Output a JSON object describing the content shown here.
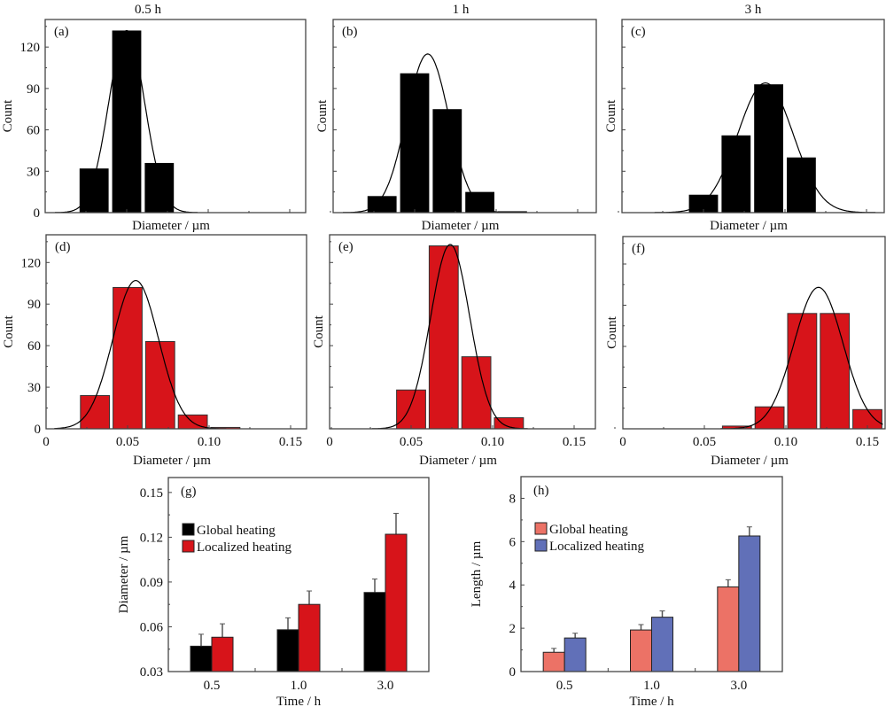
{
  "column_titles": [
    "0.5 h",
    "1 h",
    "3 h"
  ],
  "colors": {
    "global_hist": "#000000",
    "local_hist": "#d7141a",
    "g_global": "#000000",
    "g_local": "#d7141a",
    "h_global": "#ec7266",
    "h_local": "#6170b8"
  },
  "chart_data": [
    {
      "id": "a",
      "type": "bar",
      "panel_label": "(a)",
      "title": "0.5 h",
      "xlabel": "Diameter / µm",
      "ylabel": "Count",
      "xlim": [
        0,
        0.16
      ],
      "ylim": [
        0,
        140
      ],
      "show_x_tick_labels": false,
      "show_y_tick_labels": true,
      "x_ticks": [
        0,
        0.05,
        0.1,
        0.15
      ],
      "y_ticks": [
        0,
        30,
        60,
        90,
        120
      ],
      "x_tick_labels": [
        "0",
        "0.05",
        "0.10",
        "0.15"
      ],
      "y_tick_labels": [
        "0",
        "30",
        "60",
        "90",
        "120"
      ],
      "bin_width": 0.02,
      "categories": [
        0.03,
        0.05,
        0.07
      ],
      "values": [
        32,
        132,
        36
      ],
      "fit": {
        "type": "gaussian",
        "mu": 0.05,
        "sigma": 0.011,
        "peak": 132
      },
      "series_color_key": "global_hist"
    },
    {
      "id": "b",
      "type": "bar",
      "panel_label": "(b)",
      "title": "1 h",
      "xlabel": "Diameter / µm",
      "ylabel": "Count",
      "xlim": [
        0,
        0.16
      ],
      "ylim": [
        0,
        140
      ],
      "show_x_tick_labels": false,
      "show_y_tick_labels": false,
      "x_ticks": [
        0,
        0.05,
        0.1,
        0.15
      ],
      "y_ticks": [
        0,
        30,
        60,
        90,
        120
      ],
      "x_tick_labels": [
        "0",
        "0.05",
        "0.10",
        "0.15"
      ],
      "y_tick_labels": [
        "0",
        "30",
        "60",
        "90",
        "120"
      ],
      "bin_width": 0.02,
      "categories": [
        0.03,
        0.05,
        0.07,
        0.09,
        0.11
      ],
      "values": [
        12,
        101,
        75,
        15,
        1
      ],
      "fit": {
        "type": "gaussian",
        "mu": 0.058,
        "sigma": 0.013,
        "peak": 115
      },
      "series_color_key": "global_hist"
    },
    {
      "id": "c",
      "type": "bar",
      "panel_label": "(c)",
      "title": "3 h",
      "xlabel": "Diameter / µm",
      "ylabel": "Count",
      "xlim": [
        0,
        0.16
      ],
      "ylim": [
        0,
        140
      ],
      "show_x_tick_labels": false,
      "show_y_tick_labels": false,
      "x_ticks": [
        0,
        0.05,
        0.1,
        0.15
      ],
      "y_ticks": [
        0,
        30,
        60,
        90,
        120
      ],
      "x_tick_labels": [
        "0",
        "0.05",
        "0.10",
        "0.15"
      ],
      "y_tick_labels": [
        "0",
        "30",
        "60",
        "90",
        "120"
      ],
      "bin_width": 0.02,
      "categories": [
        0.05,
        0.07,
        0.09,
        0.11
      ],
      "values": [
        13,
        56,
        93,
        40
      ],
      "fit": {
        "type": "gaussian",
        "mu": 0.088,
        "sigma": 0.017,
        "peak": 94
      },
      "series_color_key": "global_hist"
    },
    {
      "id": "d",
      "type": "bar",
      "panel_label": "(d)",
      "title": "",
      "xlabel": "Diameter / µm",
      "ylabel": "Count",
      "xlim": [
        0,
        0.16
      ],
      "ylim": [
        0,
        140
      ],
      "show_x_tick_labels": true,
      "show_y_tick_labels": true,
      "x_ticks": [
        0,
        0.05,
        0.1,
        0.15
      ],
      "y_ticks": [
        0,
        30,
        60,
        90,
        120
      ],
      "x_tick_labels": [
        "0",
        "0.05",
        "0.10",
        "0.15"
      ],
      "y_tick_labels": [
        "0",
        "30",
        "60",
        "90",
        "120"
      ],
      "bin_width": 0.02,
      "categories": [
        0.03,
        0.05,
        0.07,
        0.09,
        0.11
      ],
      "values": [
        24,
        102,
        63,
        10,
        1
      ],
      "fit": {
        "type": "gaussian",
        "mu": 0.055,
        "sigma": 0.014,
        "peak": 107
      },
      "series_color_key": "local_hist"
    },
    {
      "id": "e",
      "type": "bar",
      "panel_label": "(e)",
      "title": "",
      "xlabel": "Diameter / µm",
      "ylabel": "Count",
      "xlim": [
        0,
        0.16
      ],
      "ylim": [
        0,
        140
      ],
      "show_x_tick_labels": true,
      "show_y_tick_labels": false,
      "x_ticks": [
        0,
        0.05,
        0.1,
        0.15
      ],
      "y_ticks": [
        0,
        30,
        60,
        90,
        120
      ],
      "x_tick_labels": [
        "0",
        "0.05",
        "0.10",
        "0.15"
      ],
      "y_tick_labels": [
        "0",
        "30",
        "60",
        "90",
        "120"
      ],
      "bin_width": 0.02,
      "categories": [
        0.05,
        0.07,
        0.09,
        0.11
      ],
      "values": [
        28,
        132,
        52,
        8
      ],
      "fit": {
        "type": "gaussian",
        "mu": 0.074,
        "sigma": 0.012,
        "peak": 133
      },
      "series_color_key": "local_hist"
    },
    {
      "id": "f",
      "type": "bar",
      "panel_label": "(f)",
      "title": "",
      "xlabel": "Diameter / µm",
      "ylabel": "Count",
      "xlim": [
        0,
        0.16
      ],
      "ylim": [
        0,
        140
      ],
      "show_x_tick_labels": true,
      "show_y_tick_labels": false,
      "x_ticks": [
        0,
        0.05,
        0.1,
        0.15
      ],
      "y_ticks": [
        0,
        30,
        60,
        90,
        120
      ],
      "x_tick_labels": [
        "0",
        "0.05",
        "0.10",
        "0.15"
      ],
      "y_tick_labels": [
        "0",
        "30",
        "60",
        "90",
        "120"
      ],
      "bin_width": 0.02,
      "categories": [
        0.07,
        0.09,
        0.11,
        0.13,
        0.15
      ],
      "values": [
        2,
        16,
        84,
        84,
        14
      ],
      "fit": {
        "type": "gaussian",
        "mu": 0.12,
        "sigma": 0.015,
        "peak": 103
      },
      "series_color_key": "local_hist"
    },
    {
      "id": "g",
      "type": "bar",
      "panel_label": "(g)",
      "xlabel": "Time / h",
      "ylabel": "Diameter / µm",
      "categories": [
        "0.5",
        "1.0",
        "3.0"
      ],
      "ylim": [
        0.03,
        0.16
      ],
      "y_ticks": [
        0.03,
        0.06,
        0.09,
        0.12,
        0.15
      ],
      "y_tick_labels": [
        "0.03",
        "0.06",
        "0.09",
        "0.12",
        "0.15"
      ],
      "legend_position": "top-left",
      "series": [
        {
          "name": "Global heating",
          "color_key": "g_global",
          "values": [
            0.047,
            0.058,
            0.083
          ],
          "errors": [
            0.008,
            0.008,
            0.009
          ]
        },
        {
          "name": "Localized heating",
          "color_key": "g_local",
          "values": [
            0.053,
            0.075,
            0.122
          ],
          "errors": [
            0.009,
            0.009,
            0.014
          ]
        }
      ]
    },
    {
      "id": "h",
      "type": "bar",
      "panel_label": "(h)",
      "xlabel": "Time / h",
      "ylabel": "Length / µm",
      "categories": [
        "0.5",
        "1.0",
        "3.0"
      ],
      "ylim": [
        0,
        9
      ],
      "y_ticks": [
        0,
        2,
        4,
        6,
        8
      ],
      "y_tick_labels": [
        "0",
        "2",
        "4",
        "6",
        "8"
      ],
      "legend_position": "top-left",
      "series": [
        {
          "name": "Global heating",
          "color_key": "h_global",
          "values": [
            0.89,
            1.92,
            3.91
          ],
          "errors": [
            0.18,
            0.25,
            0.33
          ]
        },
        {
          "name": "Localized heating",
          "color_key": "h_local",
          "values": [
            1.55,
            2.51,
            6.26
          ],
          "errors": [
            0.22,
            0.29,
            0.42
          ]
        }
      ]
    }
  ]
}
